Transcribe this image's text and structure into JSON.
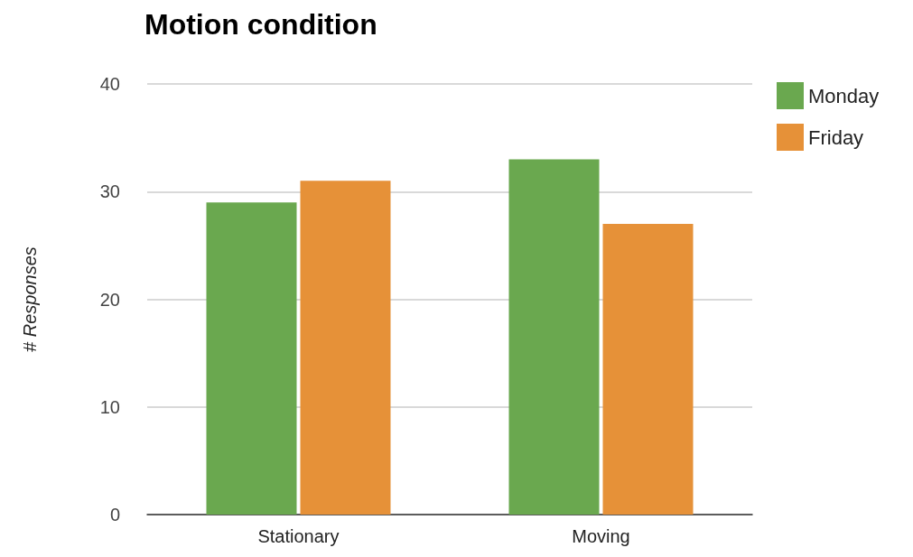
{
  "chart_data": {
    "type": "bar",
    "title": "Motion condition",
    "ylabel": "# Responses",
    "categories": [
      "Stationary",
      "Moving"
    ],
    "series": [
      {
        "name": "Monday",
        "color": "#6aa84f",
        "values": [
          29,
          33
        ]
      },
      {
        "name": "Friday",
        "color": "#e69138",
        "values": [
          31,
          27
        ]
      }
    ],
    "ylim": [
      0,
      40
    ],
    "yticks": [
      0,
      10,
      20,
      30,
      40
    ],
    "grid": "y",
    "legend": "top right"
  }
}
